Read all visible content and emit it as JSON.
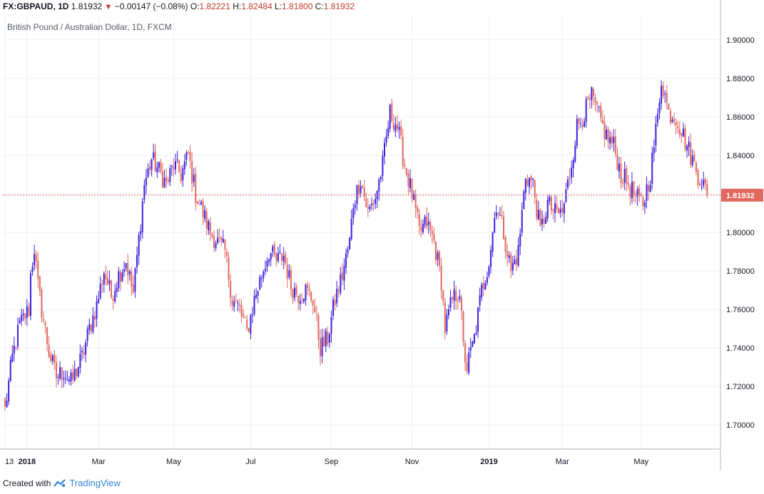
{
  "header": {
    "symbol": "FX:GBPAUD, 1D",
    "last": "1.81932",
    "change": "−0.00147 (−0.08%)",
    "open_label": "O:",
    "open": "1.82221",
    "high_label": "H:",
    "high": "1.82484",
    "low_label": "L:",
    "low": "1.81800",
    "close_label": "C:",
    "close": "1.81932"
  },
  "subtitle": "British Pound / Australian Dollar, 1D, FXCM",
  "footer": {
    "created_with": "Created with",
    "brand": "TradingView"
  },
  "colors": {
    "up": "#3b1fe0",
    "down": "#e2675e",
    "grid": "#eef0f3",
    "price_line": "#e2675e",
    "axis_text": "#131722"
  },
  "chart_data": {
    "type": "candlestick",
    "title": "British Pound / Australian Dollar, 1D, FXCM",
    "ylim": [
      1.6875,
      1.9125
    ],
    "y_ticks": [
      "1.70000",
      "1.72000",
      "1.74000",
      "1.76000",
      "1.78000",
      "1.80000",
      "1.82000",
      "1.84000",
      "1.86000",
      "1.88000",
      "1.90000"
    ],
    "x_ticks": [
      {
        "label": "13",
        "idx": 0
      },
      {
        "label": "2018",
        "idx": 12
      },
      {
        "label": "Mar",
        "idx": 51
      },
      {
        "label": "May",
        "idx": 92
      },
      {
        "label": "Jul",
        "idx": 134
      },
      {
        "label": "Sep",
        "idx": 178
      },
      {
        "label": "Nov",
        "idx": 222
      },
      {
        "label": "2019",
        "idx": 264
      },
      {
        "label": "Mar",
        "idx": 304
      },
      {
        "label": "May",
        "idx": 347
      }
    ],
    "last_price": 1.81932,
    "last_price_label": "1.81932",
    "anchors": [
      [
        0,
        1.708
      ],
      [
        4,
        1.735
      ],
      [
        8,
        1.752
      ],
      [
        13,
        1.76
      ],
      [
        14,
        1.778
      ],
      [
        16,
        1.792
      ],
      [
        18,
        1.772
      ],
      [
        20,
        1.76
      ],
      [
        24,
        1.738
      ],
      [
        28,
        1.725
      ],
      [
        32,
        1.728
      ],
      [
        36,
        1.722
      ],
      [
        42,
        1.735
      ],
      [
        46,
        1.75
      ],
      [
        50,
        1.762
      ],
      [
        54,
        1.78
      ],
      [
        58,
        1.767
      ],
      [
        62,
        1.778
      ],
      [
        66,
        1.785
      ],
      [
        70,
        1.768
      ],
      [
        76,
        1.825
      ],
      [
        80,
        1.838
      ],
      [
        84,
        1.832
      ],
      [
        88,
        1.825
      ],
      [
        92,
        1.835
      ],
      [
        96,
        1.83
      ],
      [
        100,
        1.84
      ],
      [
        104,
        1.82
      ],
      [
        108,
        1.81
      ],
      [
        112,
        1.8
      ],
      [
        116,
        1.795
      ],
      [
        120,
        1.79
      ],
      [
        124,
        1.765
      ],
      [
        128,
        1.76
      ],
      [
        132,
        1.748
      ],
      [
        136,
        1.765
      ],
      [
        140,
        1.778
      ],
      [
        144,
        1.79
      ],
      [
        148,
        1.785
      ],
      [
        152,
        1.788
      ],
      [
        156,
        1.772
      ],
      [
        160,
        1.768
      ],
      [
        164,
        1.77
      ],
      [
        168,
        1.765
      ],
      [
        172,
        1.74
      ],
      [
        176,
        1.745
      ],
      [
        180,
        1.765
      ],
      [
        184,
        1.778
      ],
      [
        188,
        1.795
      ],
      [
        190,
        1.815
      ],
      [
        194,
        1.828
      ],
      [
        198,
        1.81
      ],
      [
        202,
        1.818
      ],
      [
        206,
        1.835
      ],
      [
        210,
        1.862
      ],
      [
        214,
        1.855
      ],
      [
        218,
        1.835
      ],
      [
        222,
        1.82
      ],
      [
        226,
        1.8
      ],
      [
        230,
        1.805
      ],
      [
        234,
        1.795
      ],
      [
        238,
        1.775
      ],
      [
        240,
        1.75
      ],
      [
        244,
        1.765
      ],
      [
        248,
        1.77
      ],
      [
        250,
        1.74
      ],
      [
        252,
        1.73
      ],
      [
        256,
        1.745
      ],
      [
        260,
        1.77
      ],
      [
        264,
        1.785
      ],
      [
        268,
        1.815
      ],
      [
        272,
        1.8
      ],
      [
        276,
        1.78
      ],
      [
        280,
        1.79
      ],
      [
        284,
        1.83
      ],
      [
        288,
        1.825
      ],
      [
        292,
        1.8
      ],
      [
        296,
        1.815
      ],
      [
        300,
        1.81
      ],
      [
        304,
        1.81
      ],
      [
        308,
        1.83
      ],
      [
        312,
        1.855
      ],
      [
        316,
        1.862
      ],
      [
        320,
        1.87
      ],
      [
        324,
        1.86
      ],
      [
        328,
        1.85
      ],
      [
        332,
        1.845
      ],
      [
        336,
        1.83
      ],
      [
        340,
        1.825
      ],
      [
        344,
        1.818
      ],
      [
        348,
        1.815
      ],
      [
        352,
        1.83
      ],
      [
        356,
        1.86
      ],
      [
        358,
        1.88
      ],
      [
        362,
        1.862
      ],
      [
        366,
        1.86
      ],
      [
        370,
        1.85
      ],
      [
        374,
        1.84
      ],
      [
        378,
        1.83
      ],
      [
        381,
        1.825
      ],
      [
        383,
        1.819
      ]
    ]
  }
}
